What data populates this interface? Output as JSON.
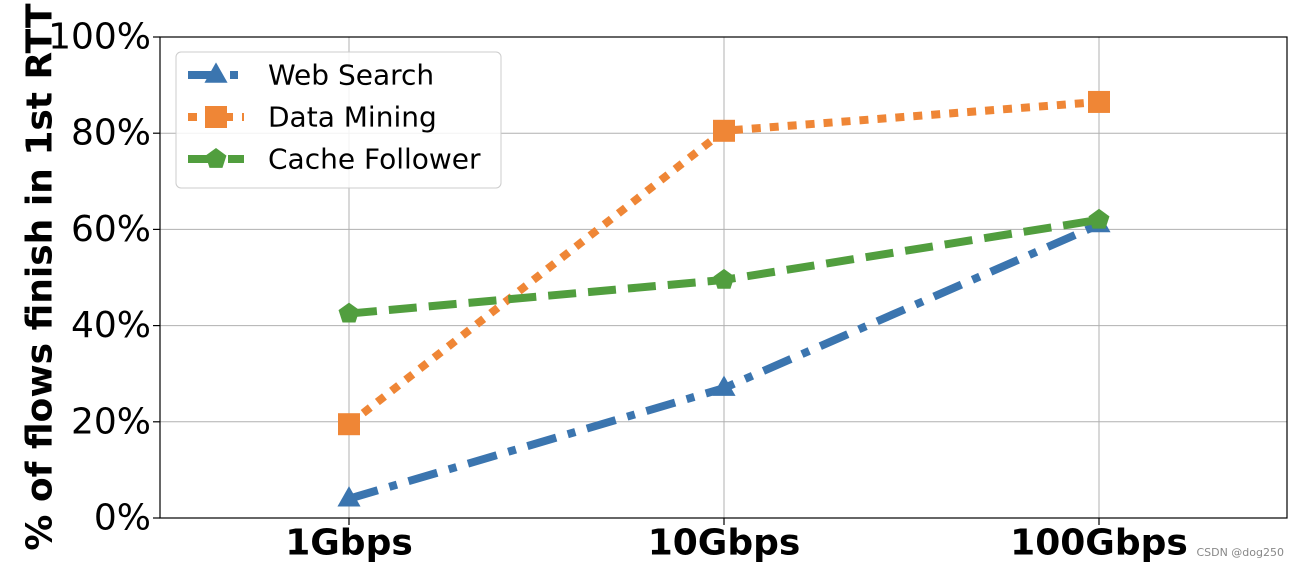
{
  "chart_data": {
    "type": "line",
    "title": "",
    "xlabel": "",
    "ylabel": "% of flows finish in 1st RTT",
    "categories": [
      "1Gbps",
      "10Gbps",
      "100Gbps"
    ],
    "ylim": [
      0,
      100
    ],
    "yticks": [
      0,
      20,
      40,
      60,
      80,
      100
    ],
    "ytick_labels": [
      "0%",
      "20%",
      "40%",
      "60%",
      "80%",
      "100%"
    ],
    "grid": true,
    "legend_position": "upper-left",
    "series": [
      {
        "name": "Web Search",
        "values": [
          4,
          27,
          61
        ],
        "color": "#3b75af",
        "marker": "triangle",
        "line_style": "dash-dot"
      },
      {
        "name": "Data Mining",
        "values": [
          19.5,
          80.5,
          86.5
        ],
        "color": "#ef8636",
        "marker": "square",
        "line_style": "dotted"
      },
      {
        "name": "Cache Follower",
        "values": [
          42.5,
          49.5,
          62
        ],
        "color": "#519e3e",
        "marker": "pentagon",
        "line_style": "dashed"
      }
    ]
  },
  "watermark": "CSDN @dog250"
}
